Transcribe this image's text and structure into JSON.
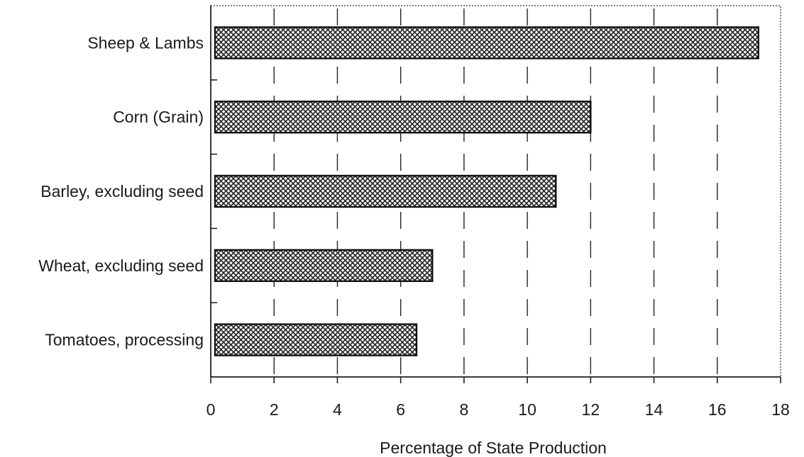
{
  "chart_data": {
    "type": "bar",
    "orientation": "horizontal",
    "categories": [
      "Sheep & Lambs",
      "Corn (Grain)",
      "Barley, excluding seed",
      "Wheat, excluding seed",
      "Tomatoes, processing"
    ],
    "values": [
      17.3,
      12.0,
      10.9,
      7.0,
      6.5
    ],
    "xlabel": "Percentage of State Production",
    "ylabel": "",
    "xlim": [
      0,
      18
    ],
    "xticks": [
      "0",
      "2",
      "4",
      "6",
      "8",
      "10",
      "12",
      "14",
      "16",
      "18"
    ],
    "grid": "vertical dashed lines",
    "bar_fill": "crosshatch pattern",
    "colors": {
      "bar_hatch": "#222222",
      "bar_background": "#ffffff",
      "text": "#1a1a1a"
    }
  }
}
